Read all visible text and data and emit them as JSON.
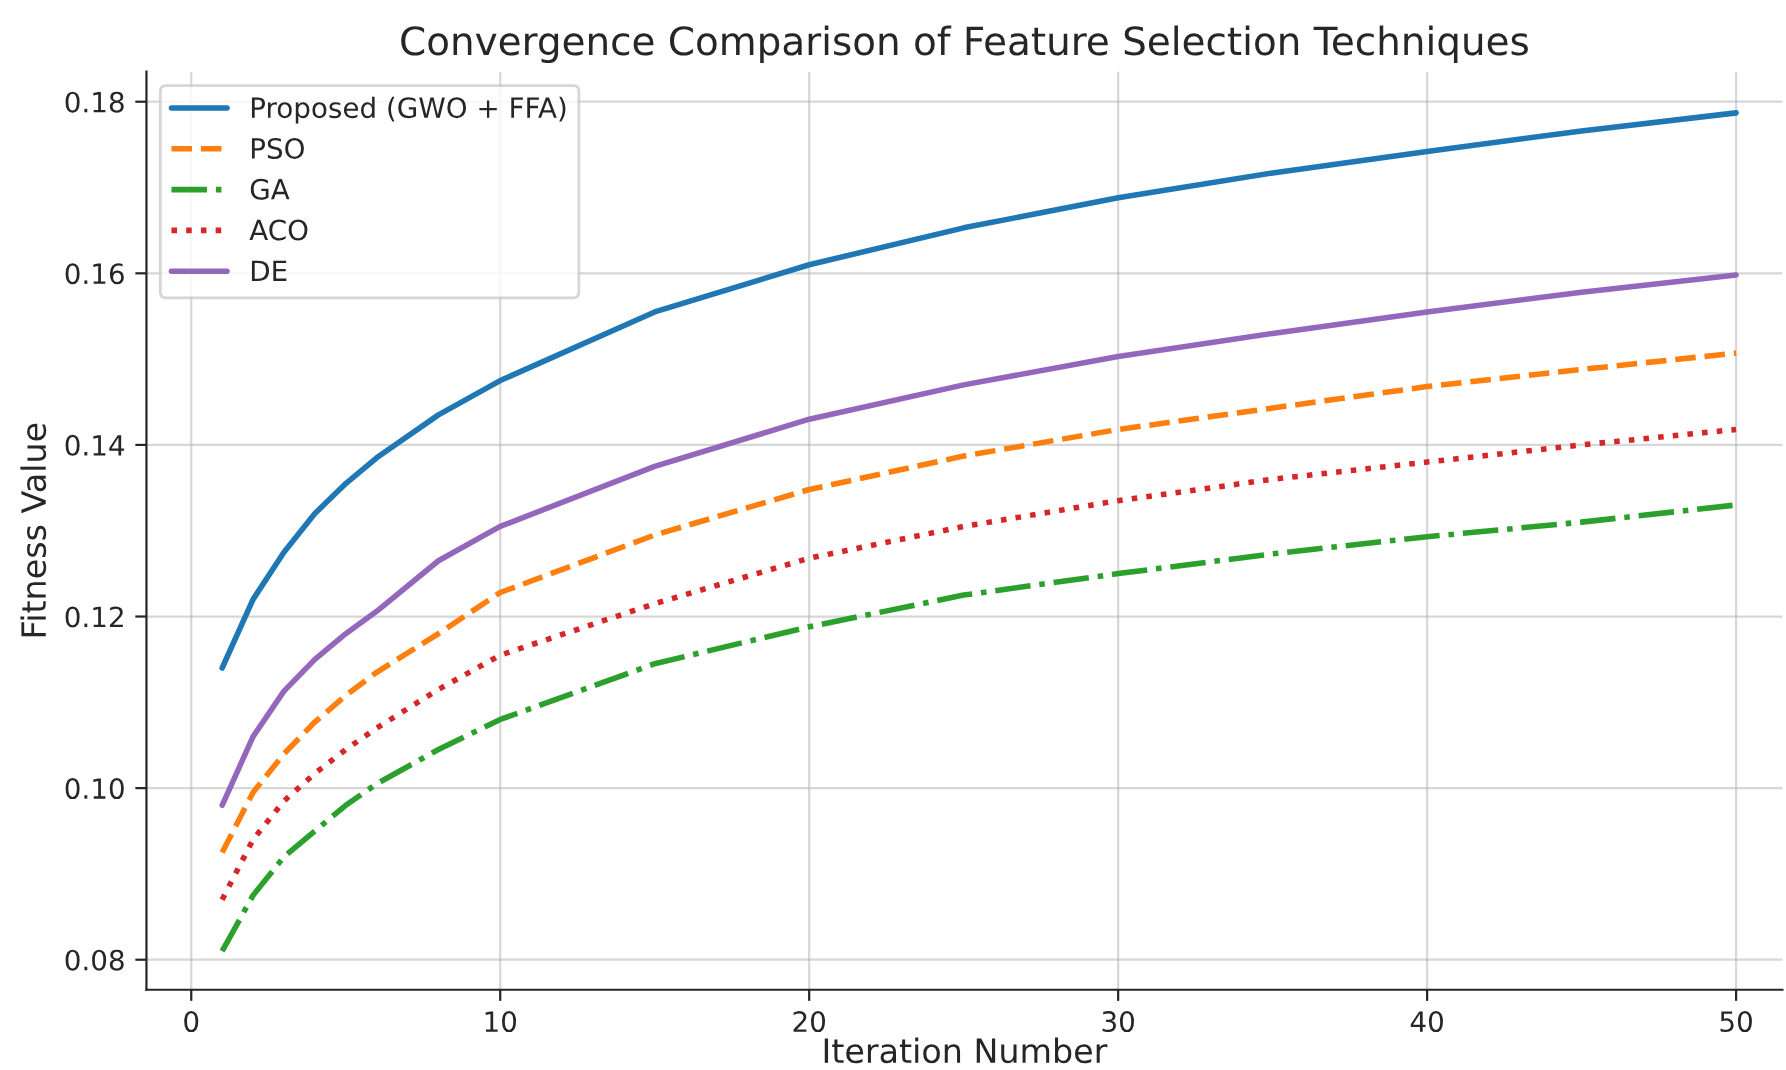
{
  "chart_data": {
    "type": "line",
    "title": "Convergence Comparison of Feature Selection Techniques",
    "xlabel": "Iteration Number",
    "ylabel": "Fitness Value",
    "x": [
      1,
      2,
      3,
      4,
      5,
      6,
      8,
      10,
      15,
      20,
      25,
      30,
      35,
      40,
      45,
      50
    ],
    "series": [
      {
        "name": "Proposed (GWO + FFA)",
        "color": "#1f77b4",
        "line_style": "solid",
        "values": [
          0.114,
          0.122,
          0.1275,
          0.132,
          0.1355,
          0.1385,
          0.1435,
          0.1475,
          0.1555,
          0.161,
          0.1653,
          0.1688,
          0.1717,
          0.1742,
          0.1766,
          0.1787
        ]
      },
      {
        "name": "PSO",
        "color": "#ff7f0e",
        "line_style": "dashed",
        "values": [
          0.0925,
          0.0995,
          0.104,
          0.1077,
          0.1108,
          0.1135,
          0.118,
          0.1228,
          0.1295,
          0.1348,
          0.1387,
          0.1418,
          0.1443,
          0.1468,
          0.1488,
          0.1507
        ]
      },
      {
        "name": "GA",
        "color": "#2ca02c",
        "line_style": "dashdot",
        "values": [
          0.081,
          0.0875,
          0.092,
          0.095,
          0.098,
          0.1005,
          0.1045,
          0.108,
          0.1145,
          0.1188,
          0.1225,
          0.125,
          0.1273,
          0.1293,
          0.131,
          0.133
        ]
      },
      {
        "name": "ACO",
        "color": "#d62728",
        "line_style": "dotted",
        "values": [
          0.087,
          0.094,
          0.0985,
          0.1017,
          0.1045,
          0.107,
          0.1115,
          0.1155,
          0.1215,
          0.1268,
          0.1305,
          0.1335,
          0.136,
          0.138,
          0.14,
          0.1418
        ]
      },
      {
        "name": "DE",
        "color": "#9467bd",
        "line_style": "solid",
        "values": [
          0.098,
          0.106,
          0.1113,
          0.115,
          0.118,
          0.1206,
          0.1265,
          0.1305,
          0.1375,
          0.143,
          0.147,
          0.1503,
          0.153,
          0.1555,
          0.1578,
          0.1598
        ]
      }
    ],
    "xlim": [
      -1.45,
      51.5
    ],
    "xticks": [
      0,
      10,
      20,
      30,
      40,
      50
    ],
    "ylim": [
      0.0765,
      0.1835
    ],
    "yticks": [
      {
        "value": 0.08,
        "label": "0.08"
      },
      {
        "value": 0.1,
        "label": "0.10"
      },
      {
        "value": 0.12,
        "label": "0.12"
      },
      {
        "value": 0.14,
        "label": "0.14"
      },
      {
        "value": 0.16,
        "label": "0.16"
      },
      {
        "value": 0.18,
        "label": "0.18"
      }
    ],
    "grid": true,
    "legend": "top left",
    "marker": "none"
  }
}
